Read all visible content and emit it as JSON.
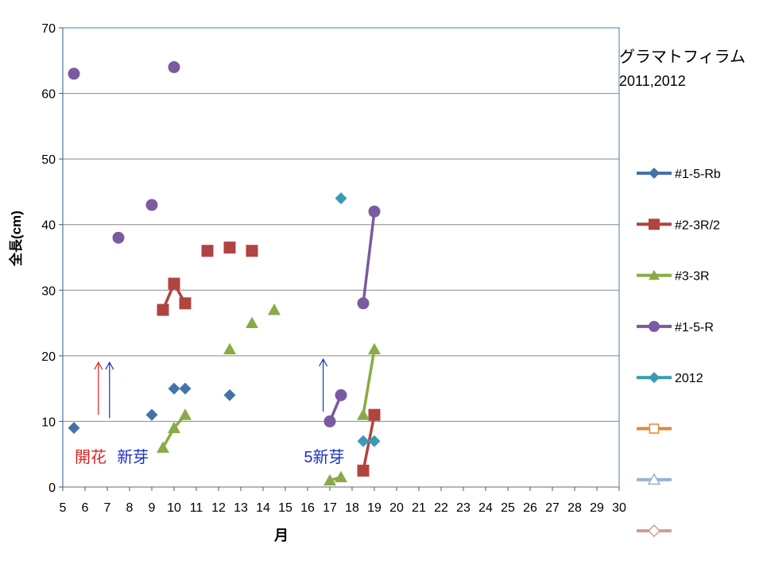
{
  "chart_data": {
    "type": "line",
    "title": "グラマトフィラム",
    "subtitle": "2011,2012",
    "xlabel": "月",
    "ylabel": "全長(cm)",
    "xlim": [
      5,
      30
    ],
    "ylim": [
      0,
      70
    ],
    "x_ticks": [
      "5",
      "6",
      "7",
      "8",
      "9",
      "10",
      "11",
      "12",
      "13",
      "14",
      "15",
      "16",
      "17",
      "18",
      "19",
      "20",
      "21",
      "22",
      "23",
      "24",
      "25",
      "26",
      "27",
      "28",
      "29",
      "30"
    ],
    "y_ticks": [
      "0",
      "10",
      "20",
      "30",
      "40",
      "50",
      "60",
      "70"
    ],
    "grid": "horizontal",
    "legend_position": "right",
    "series": [
      {
        "name": "#1-5-Rb",
        "color": "#4472a8",
        "marker": "diamond",
        "points": [
          [
            5.5,
            9
          ],
          [
            9,
            11
          ],
          [
            10,
            15
          ],
          [
            10.5,
            15
          ],
          [
            12.5,
            14
          ]
        ],
        "segments": []
      },
      {
        "name": "#2-3R/2",
        "color": "#b04440",
        "marker": "square",
        "points": [
          [
            9.5,
            27
          ],
          [
            10,
            31
          ],
          [
            10.5,
            28
          ],
          [
            11.5,
            36
          ],
          [
            12.5,
            36.5
          ],
          [
            13.5,
            36
          ],
          [
            18.5,
            2.5
          ],
          [
            19,
            11
          ]
        ],
        "segments": [
          [
            0,
            1
          ],
          [
            1,
            2
          ],
          [
            6,
            7
          ]
        ]
      },
      {
        "name": "#3-3R",
        "color": "#8aaa48",
        "marker": "triangle",
        "points": [
          [
            9.5,
            6
          ],
          [
            10,
            9
          ],
          [
            10.5,
            11
          ],
          [
            12.5,
            21
          ],
          [
            13.5,
            25
          ],
          [
            14.5,
            27
          ],
          [
            17,
            1
          ],
          [
            17.5,
            1.5
          ],
          [
            18.5,
            11
          ],
          [
            19,
            21
          ]
        ],
        "segments": [
          [
            0,
            1
          ],
          [
            1,
            2
          ],
          [
            6,
            7
          ],
          [
            8,
            9
          ]
        ]
      },
      {
        "name": "#1-5-R",
        "color": "#7a5aa0",
        "marker": "circle",
        "points": [
          [
            5.5,
            63
          ],
          [
            7.5,
            38
          ],
          [
            9,
            43
          ],
          [
            10,
            64
          ],
          [
            17,
            10
          ],
          [
            17.5,
            14
          ],
          [
            18.5,
            28
          ],
          [
            19,
            42
          ]
        ],
        "segments": [
          [
            4,
            5
          ],
          [
            6,
            7
          ]
        ]
      },
      {
        "name": "2012",
        "color": "#3a9ab4",
        "marker": "diamond",
        "points": [
          [
            17.5,
            44
          ],
          [
            18.5,
            7
          ],
          [
            19,
            7
          ]
        ],
        "segments": [
          [
            1,
            2
          ]
        ]
      },
      {
        "name": "",
        "color": "#e08838",
        "marker": "square-open",
        "points": [],
        "segments": []
      },
      {
        "name": "",
        "color": "#98b0d6",
        "marker": "triangle-open",
        "points": [],
        "segments": []
      },
      {
        "name": "",
        "color": "#d89898",
        "marker": "diamond-open",
        "points": [],
        "segments": []
      }
    ],
    "annotations": [
      {
        "text": "開花",
        "color": "#dd2222",
        "x": 6.5,
        "y": 4.7
      },
      {
        "text": "新芽",
        "color": "#1a2ec8",
        "x": 8.4,
        "y": 4.7
      },
      {
        "text": "5新芽",
        "color": "#1a2ec8",
        "x": 16.8,
        "y": 4.7
      }
    ],
    "arrows": [
      {
        "color": "#dd2222",
        "x": 6.6,
        "y_from": 11,
        "y_to": 19
      },
      {
        "color": "#1a2ec8",
        "x": 7.1,
        "y_from": 10.5,
        "y_to": 19
      },
      {
        "color": "#1a2ec8",
        "x": 16.7,
        "y_from": 11.5,
        "y_to": 19.5
      }
    ]
  }
}
